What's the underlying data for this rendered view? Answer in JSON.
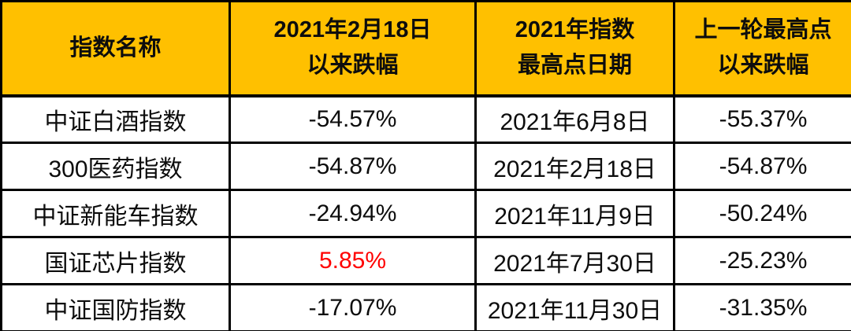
{
  "colors": {
    "header_bg": "#FFC000",
    "border": "#000000",
    "text": "#0d0d0d",
    "highlight_text": "#FF0000",
    "row_bg": "#FFFFFF"
  },
  "table": {
    "columns": [
      {
        "id": "index-name",
        "lines": [
          "指数名称"
        ]
      },
      {
        "id": "drawdown-since-feb18",
        "lines": [
          "2021年2月18日",
          "以来跌幅"
        ]
      },
      {
        "id": "peak-date-2021",
        "lines": [
          "2021年指数",
          "最高点日期"
        ]
      },
      {
        "id": "drawdown-since-prev-peak",
        "lines": [
          "上一轮最高点",
          "以来跌幅"
        ]
      }
    ],
    "rows": [
      {
        "cells": [
          "中证白酒指数",
          "-54.57%",
          "2021年6月8日",
          "-55.37%"
        ]
      },
      {
        "cells": [
          "300医药指数",
          "-54.87%",
          "2021年2月18日",
          "-54.87%"
        ]
      },
      {
        "cells": [
          "中证新能车指数",
          "-24.94%",
          "2021年11月9日",
          "-50.24%"
        ]
      },
      {
        "cells": [
          "国证芯片指数",
          "5.85%",
          "2021年7月30日",
          "-25.23%"
        ],
        "highlight_cell": 1
      },
      {
        "cells": [
          "中证国防指数",
          "-17.07%",
          "2021年11月30日",
          "-31.35%"
        ]
      }
    ]
  },
  "chart_data": {
    "type": "table",
    "title": "",
    "columns": [
      "指数名称",
      "2021年2月18日以来跌幅",
      "2021年指数最高点日期",
      "上一轮最高点以来跌幅"
    ],
    "rows": [
      [
        "中证白酒指数",
        "-54.57%",
        "2021年6月8日",
        "-55.37%"
      ],
      [
        "300医药指数",
        "-54.87%",
        "2021年2月18日",
        "-54.87%"
      ],
      [
        "中证新能车指数",
        "-24.94%",
        "2021年11月9日",
        "-50.24%"
      ],
      [
        "国证芯片指数",
        "5.85%",
        "2021年7月30日",
        "-25.23%"
      ],
      [
        "中证国防指数",
        "-17.07%",
        "2021年11月30日",
        "-31.35%"
      ]
    ],
    "notes": "row 国证芯片指数 value 5.85% rendered in red (positive change); all other change values negative in black"
  }
}
